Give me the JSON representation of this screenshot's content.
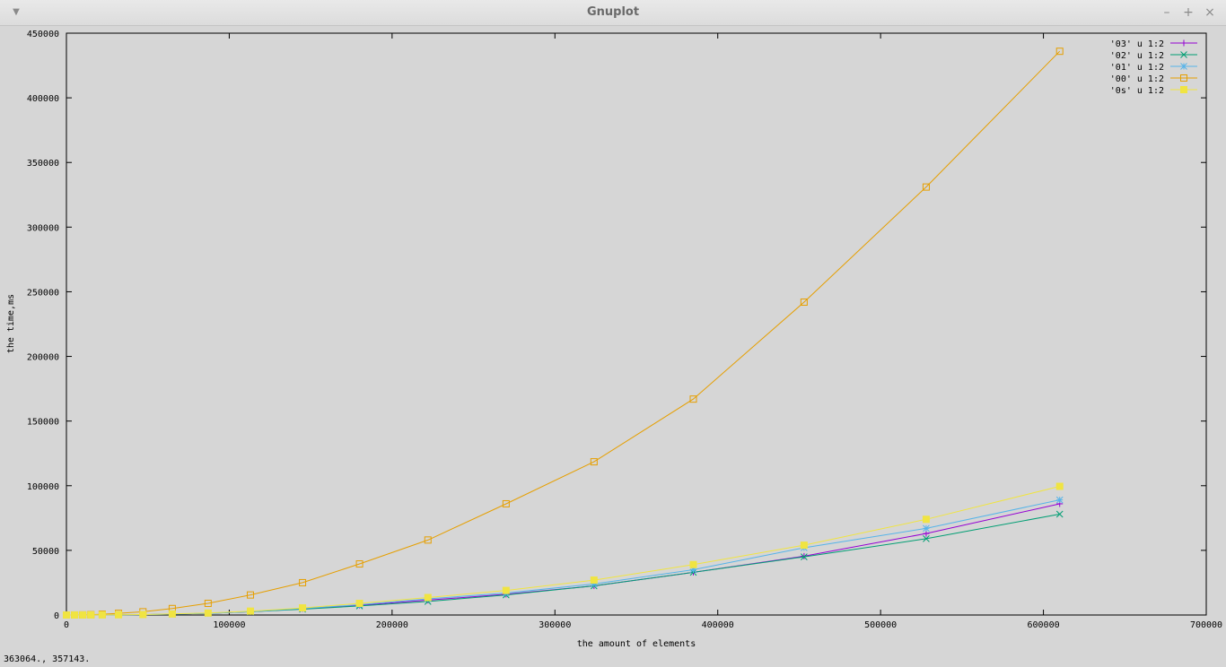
{
  "window": {
    "title": "Gnuplot",
    "menu_icon": "chevron-down-icon",
    "minimize_label": "–",
    "maximize_label": "+",
    "close_label": "×"
  },
  "status": {
    "readout": "363064.,  357143."
  },
  "chart_data": {
    "type": "line",
    "title": "",
    "xlabel": "the amount of elements",
    "ylabel": "the time,ms",
    "xlim": [
      0,
      700000
    ],
    "ylim": [
      0,
      450000
    ],
    "x_ticks": [
      "0",
      "100000",
      "200000",
      "300000",
      "400000",
      "500000",
      "600000",
      "700000"
    ],
    "y_ticks": [
      "0",
      "50000",
      "100000",
      "150000",
      "200000",
      "250000",
      "300000",
      "350000",
      "400000",
      "450000"
    ],
    "grid": false,
    "legend_position": "top-right",
    "x": [
      0,
      5000,
      10000,
      15000,
      22000,
      32000,
      47000,
      65000,
      87000,
      113000,
      145000,
      180000,
      222000,
      270000,
      324000,
      385000,
      453000,
      528000,
      610000
    ],
    "series": [
      {
        "name": "'03' u 1:2",
        "color": "#9400d3",
        "marker": "plus",
        "values": [
          0,
          5,
          15,
          30,
          70,
          150,
          300,
          700,
          1300,
          2500,
          4800,
          7500,
          11500,
          16000,
          22500,
          33000,
          45500,
          63000,
          86000
        ]
      },
      {
        "name": "'02' u 1:2",
        "color": "#009e73",
        "marker": "cross",
        "values": [
          0,
          5,
          15,
          30,
          70,
          150,
          300,
          700,
          1300,
          2500,
          4500,
          7000,
          10500,
          15500,
          22500,
          33000,
          45000,
          59000,
          78000
        ]
      },
      {
        "name": "'01' u 1:2",
        "color": "#56b4e9",
        "marker": "star",
        "values": [
          0,
          5,
          15,
          30,
          70,
          150,
          300,
          700,
          1300,
          2600,
          5000,
          8000,
          12500,
          17000,
          24000,
          35000,
          52000,
          67000,
          89000
        ]
      },
      {
        "name": "'00' u 1:2",
        "color": "#e69f00",
        "marker": "square",
        "values": [
          0,
          30,
          100,
          250,
          600,
          1300,
          2500,
          5000,
          9000,
          15500,
          25000,
          39500,
          58000,
          86000,
          118500,
          167000,
          242000,
          331000,
          436000
        ]
      },
      {
        "name": "'0s' u 1:2",
        "color": "#f0e442",
        "marker": "filled-square",
        "values": [
          0,
          10,
          20,
          40,
          80,
          180,
          350,
          800,
          1500,
          3000,
          5500,
          9000,
          13500,
          19000,
          27000,
          39000,
          54000,
          74000,
          99500
        ]
      }
    ]
  }
}
